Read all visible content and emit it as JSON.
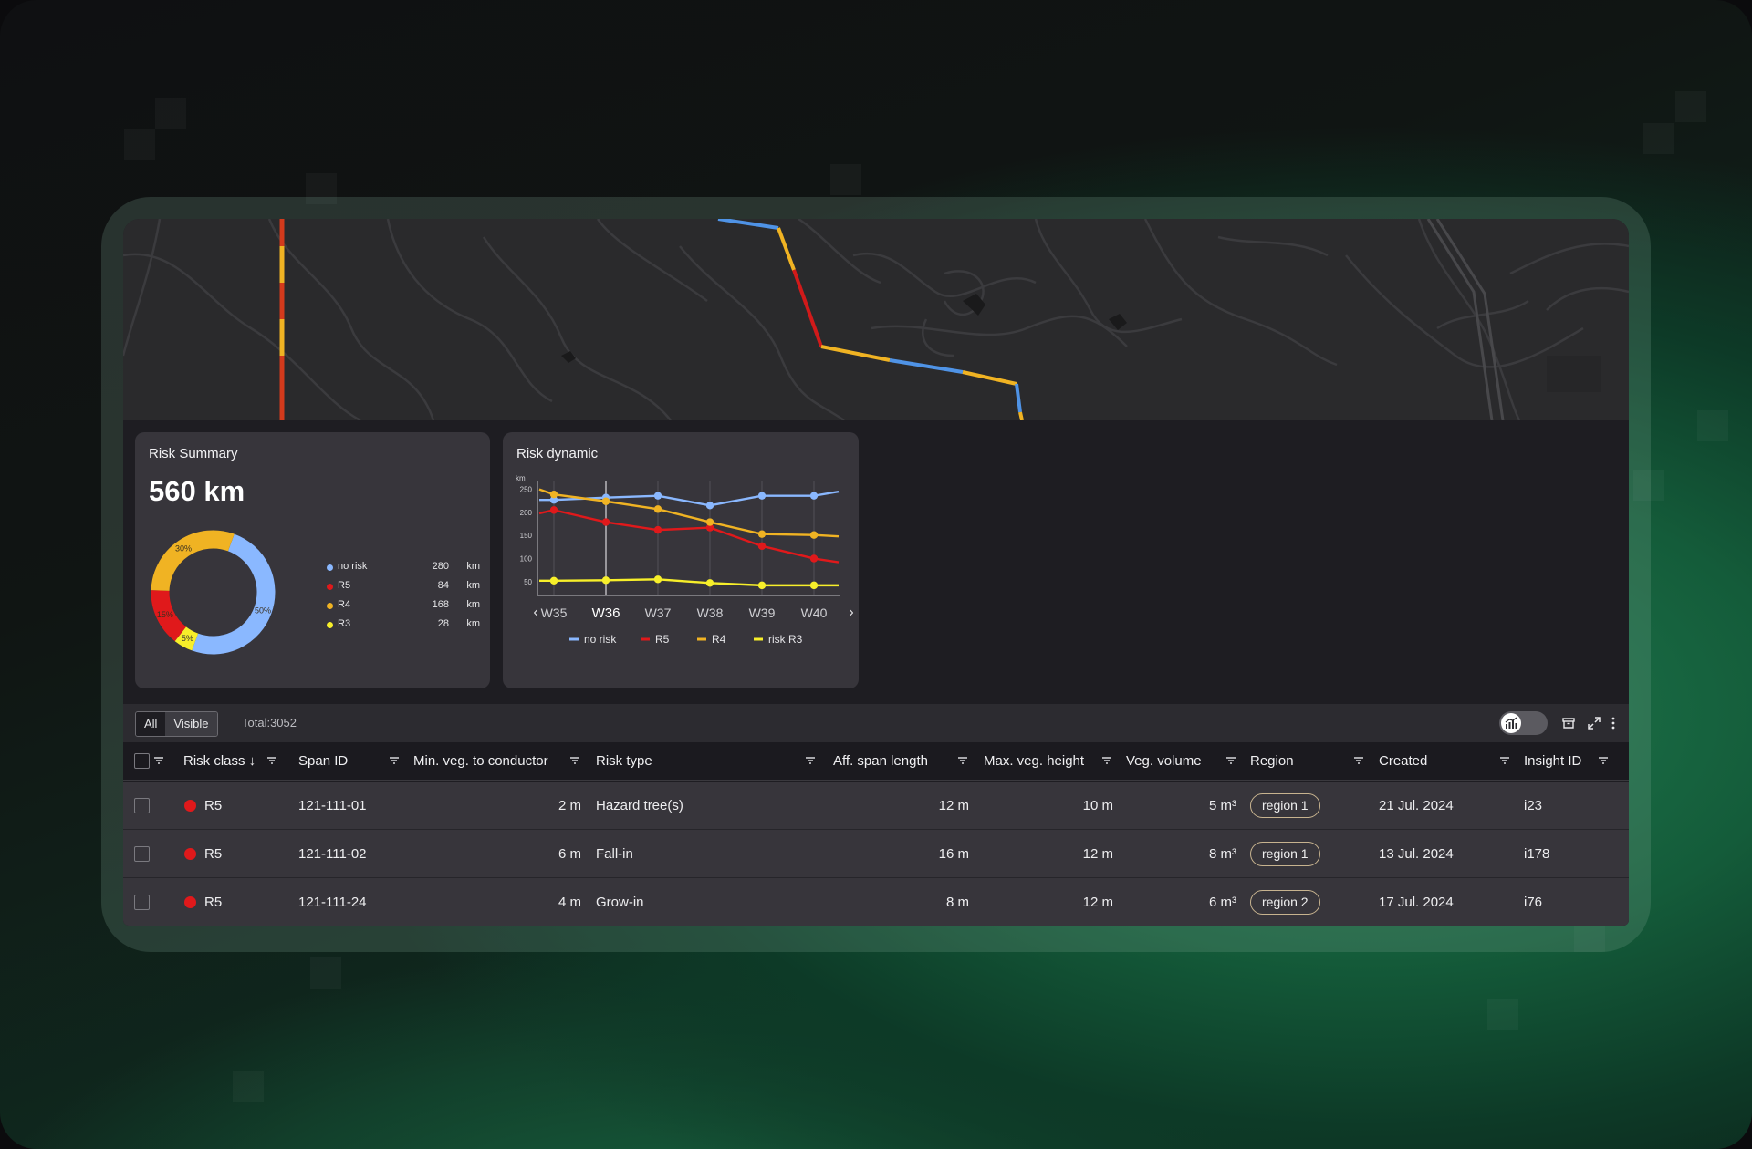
{
  "summary": {
    "title": "Risk Summary",
    "total_value": "560 km",
    "legend": [
      {
        "name": "no risk",
        "value": "280",
        "unit": "km",
        "color": "#8ab8ff"
      },
      {
        "name": "R5",
        "value": "84",
        "unit": "km",
        "color": "#e0191b"
      },
      {
        "name": "R4",
        "value": "168",
        "unit": "km",
        "color": "#f0b323"
      },
      {
        "name": "R3",
        "value": "28",
        "unit": "km",
        "color": "#f7ef2a"
      }
    ]
  },
  "dynamic": {
    "title": "Risk dynamic",
    "prev_label": "‹",
    "next_label": "›"
  },
  "chart_data": [
    {
      "type": "pie",
      "title": "Risk Summary",
      "donut": true,
      "categories": [
        "no risk",
        "R5",
        "R4",
        "R3"
      ],
      "values": [
        280,
        84,
        168,
        28
      ],
      "labels": [
        "50%",
        "15%",
        "30%",
        "5%"
      ],
      "colors": [
        "#8ab8ff",
        "#e0191b",
        "#f0b323",
        "#f7ef2a"
      ]
    },
    {
      "type": "line",
      "title": "Risk dynamic",
      "ylabel": "km",
      "x": [
        "W35",
        "W36",
        "W37",
        "W38",
        "W39",
        "W40"
      ],
      "yticks": [
        50,
        100,
        150,
        200,
        250
      ],
      "ylim": [
        20,
        265
      ],
      "highlight": "W36",
      "legend_position": "bottom",
      "series": [
        {
          "name": "no risk",
          "color": "#8ab8ff",
          "values": [
            227,
            232,
            236,
            215,
            236,
            236
          ],
          "lead": 227,
          "tail": 245
        },
        {
          "name": "R5",
          "color": "#e0191b",
          "values": [
            205,
            179,
            162,
            167,
            127,
            100
          ],
          "lead": 198,
          "tail": 92
        },
        {
          "name": "R4",
          "color": "#f0b323",
          "values": [
            239,
            224,
            207,
            179,
            153,
            151
          ],
          "lead": 250,
          "tail": 148
        },
        {
          "name": "risk R3",
          "color": "#f7ef2a",
          "values": [
            52,
            53,
            55,
            47,
            42,
            42
          ],
          "lead": 52,
          "tail": 42
        }
      ]
    }
  ],
  "toolbar": {
    "filter_all": "All",
    "filter_visible": "Visible",
    "total": "Total:3052"
  },
  "table": {
    "columns": {
      "risk_class": "Risk class ↓",
      "span_id": "Span ID",
      "min_veg": "Min. veg. to conductor",
      "risk_type": "Risk type",
      "aff_span": "Aff. span length",
      "max_veg": "Max. veg. height",
      "veg_volume": "Veg. volume",
      "region": "Region",
      "created": "Created",
      "insight_id": "Insight ID"
    },
    "rows": [
      {
        "risk_class": "R5",
        "span_id": "121-111-01",
        "min_veg": "2 m",
        "risk_type": "Hazard tree(s)",
        "aff_span": "12 m",
        "max_veg": "10 m",
        "veg_volume": "5 m³",
        "region": "region 1",
        "created": "21 Jul. 2024",
        "insight_id": "i23"
      },
      {
        "risk_class": "R5",
        "span_id": "121-111-02",
        "min_veg": "6 m",
        "risk_type": "Fall-in",
        "aff_span": "16 m",
        "max_veg": "12 m",
        "veg_volume": "8 m³",
        "region": "region 1",
        "created": "13 Jul. 2024",
        "insight_id": "i178"
      },
      {
        "risk_class": "R5",
        "span_id": "121-111-24",
        "min_veg": "4 m",
        "risk_type": "Grow-in",
        "aff_span": "8 m",
        "max_veg": "12 m",
        "veg_volume": "6 m³",
        "region": "region 2",
        "created": "17 Jul. 2024",
        "insight_id": "i76"
      }
    ]
  }
}
